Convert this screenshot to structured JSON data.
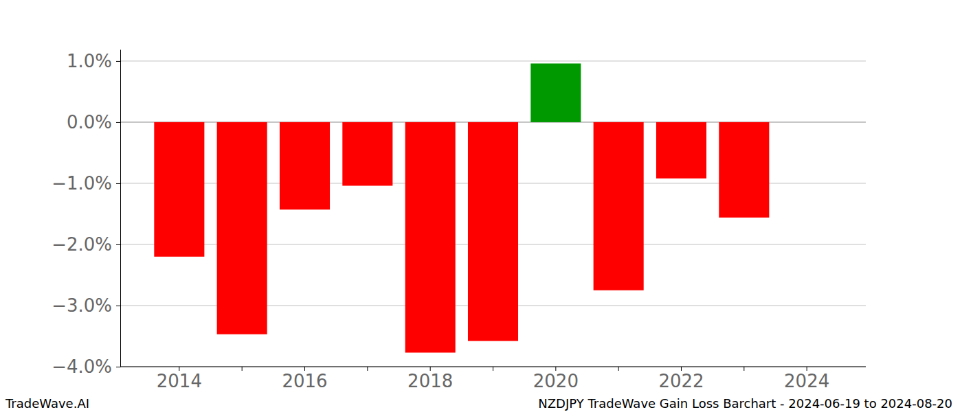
{
  "chart_data": {
    "type": "bar",
    "title": "NZDJPY TradeWave Gain Loss Barchart - 2024-06-19 to 2024-08-20",
    "annotations": [
      "TradeWave.AI"
    ],
    "categories": [
      "2014",
      null,
      "2016",
      null,
      "2018",
      null,
      "2020",
      null,
      "2022",
      null,
      "2024"
    ],
    "values": [
      -2.2,
      -3.47,
      -1.43,
      -1.04,
      -3.77,
      -3.58,
      0.96,
      -2.75,
      -0.92,
      -1.56,
      null
    ],
    "colors": [
      "#ff0000",
      "#ff0000",
      "#ff0000",
      "#ff0000",
      "#ff0000",
      "#ff0000",
      "#009900",
      "#ff0000",
      "#ff0000",
      "#ff0000",
      null
    ],
    "ylim": [
      -4.0,
      1.19
    ],
    "yticks": [
      {
        "value": 1,
        "label": "1.0%"
      },
      {
        "value": 0,
        "label": "0.0%"
      },
      {
        "value": -1,
        "label": "−1.0%"
      },
      {
        "value": -2,
        "label": "−2.0%"
      },
      {
        "value": -3,
        "label": "−3.0%"
      },
      {
        "value": -4,
        "label": "−4.0%"
      }
    ],
    "grid": true
  }
}
